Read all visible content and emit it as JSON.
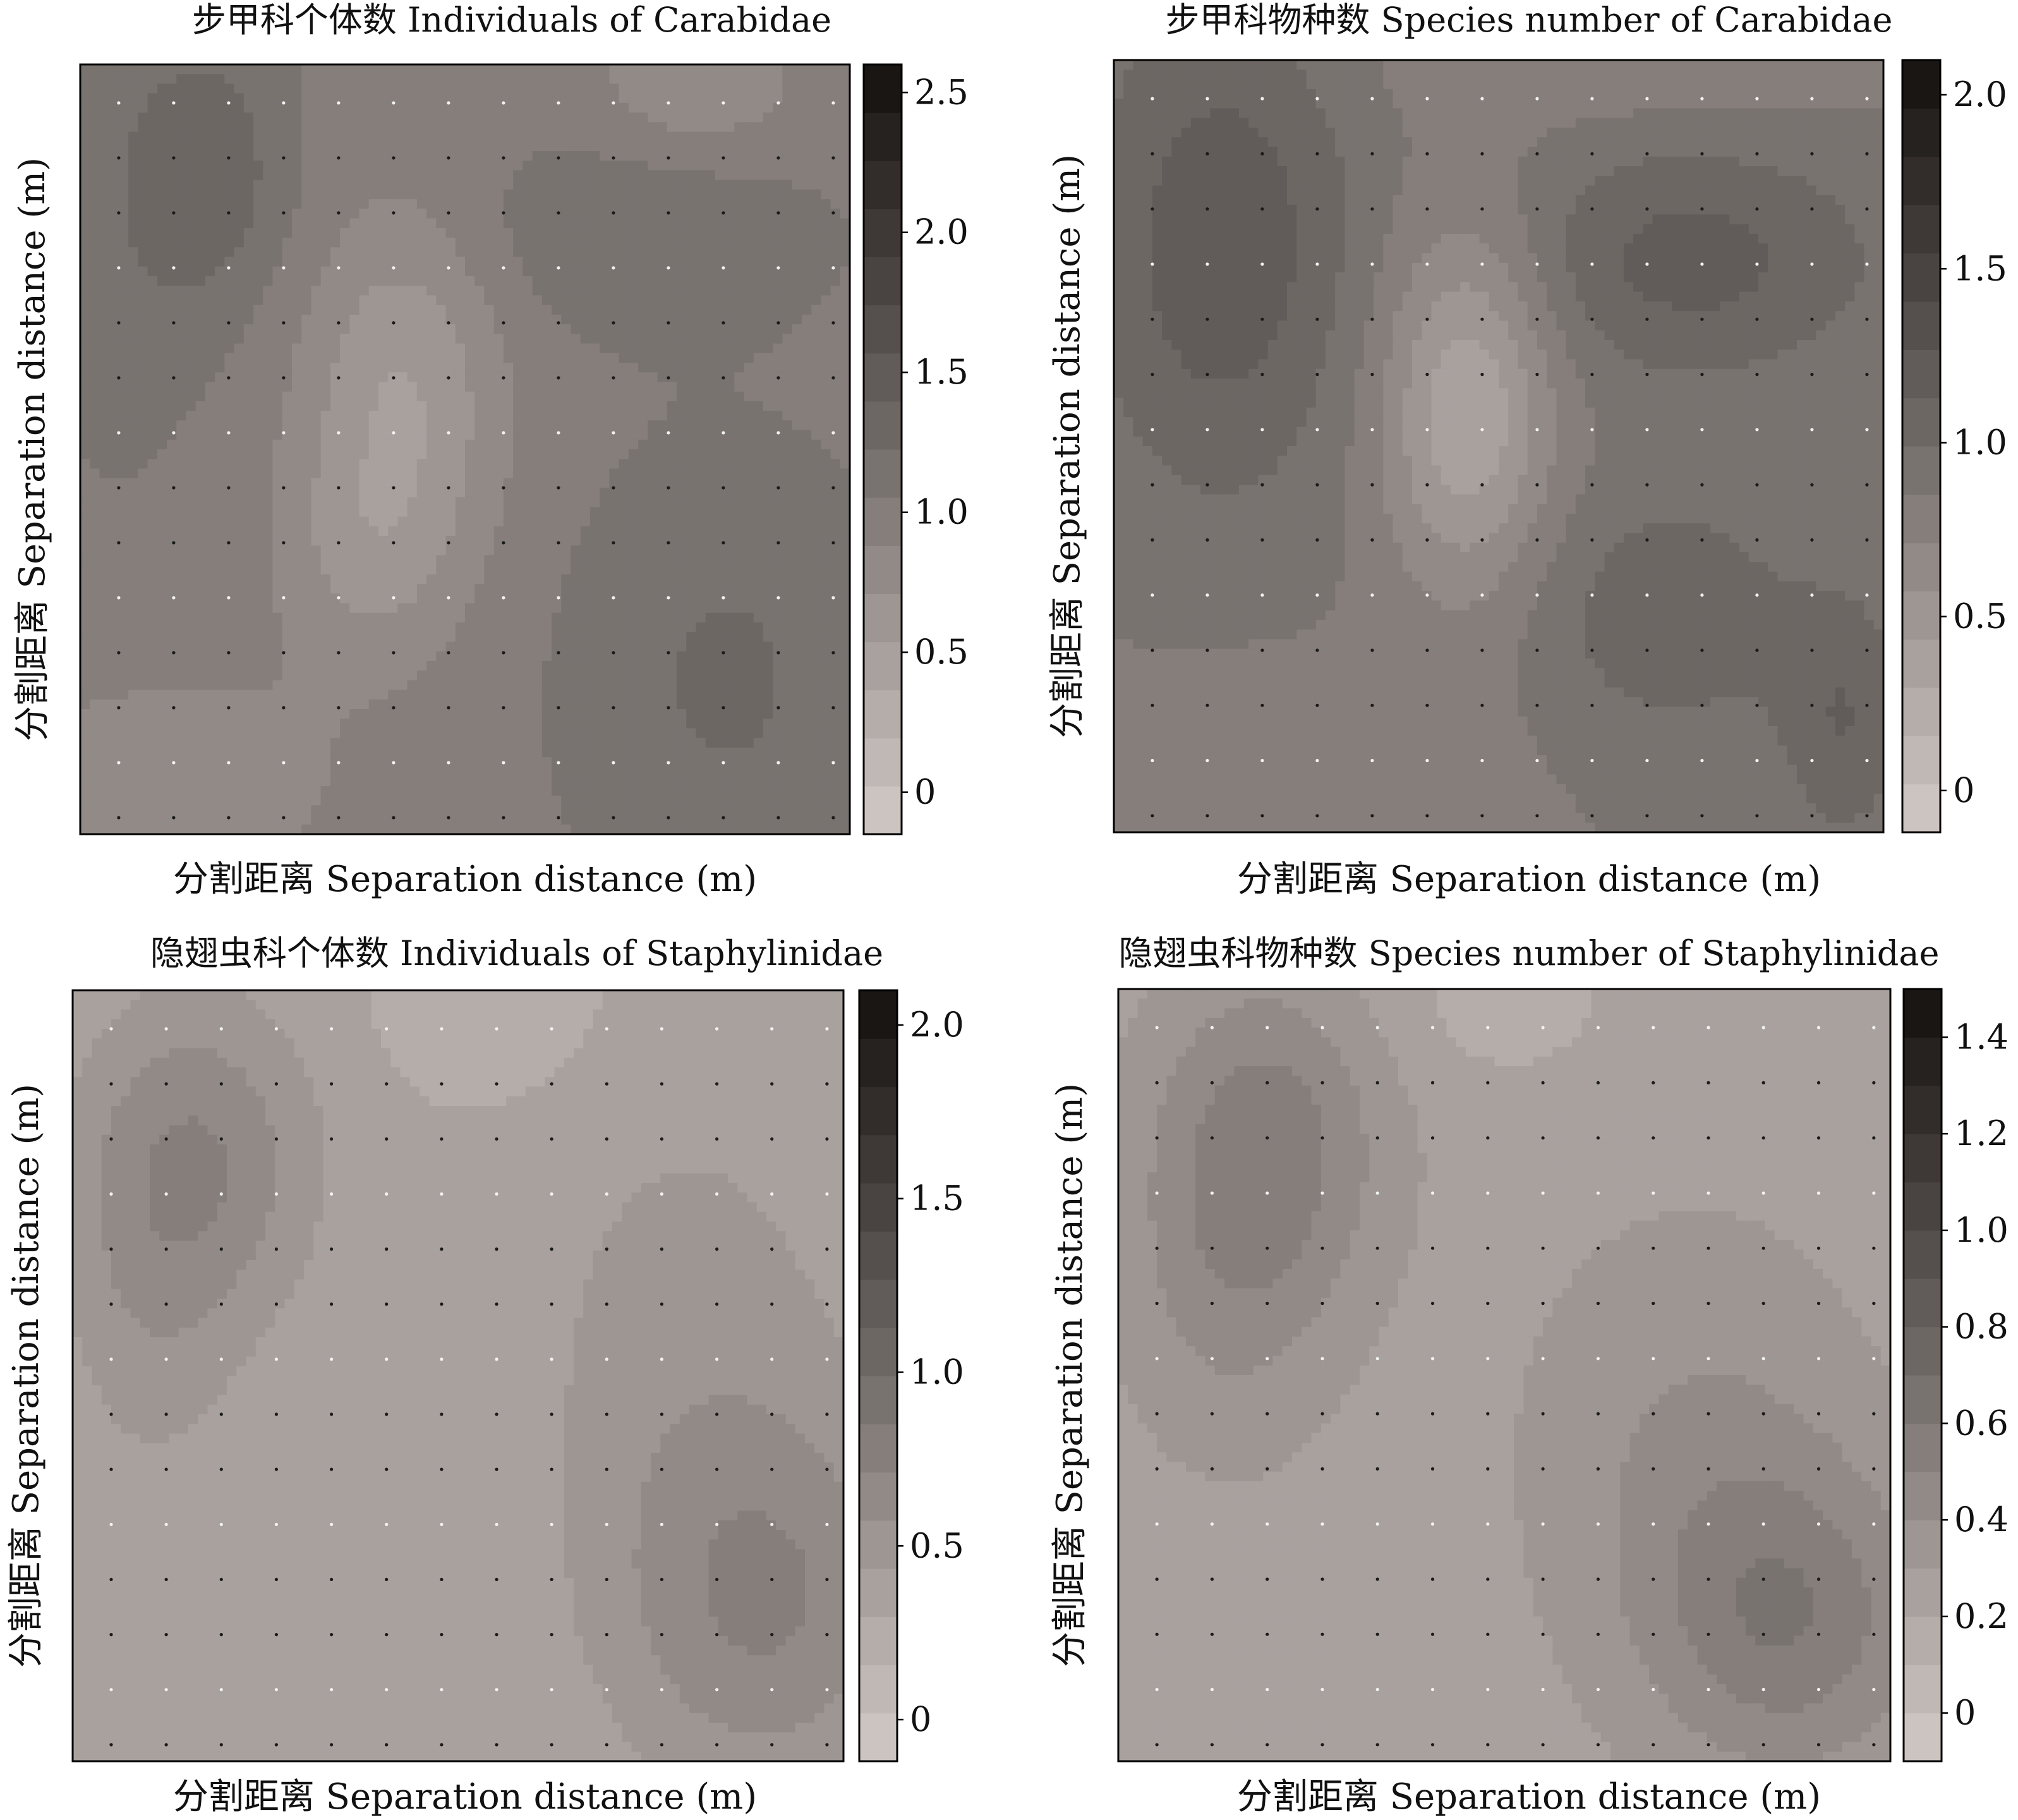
{
  "chart_data": [
    {
      "type": "heatmap",
      "title": "步甲科个体数 Individuals of Carabidae",
      "xlabel": "分割距离 Separation distance (m)",
      "ylabel": "分割距离 Separation distance (m)",
      "colorbar_ticks": [
        "0",
        "0.5",
        "1.0",
        "1.5",
        "2.0",
        "2.5"
      ],
      "colorbar_values": [
        0,
        0.5,
        1.0,
        1.5,
        2.0,
        2.5
      ],
      "colorbar_range": [
        -0.15,
        2.6
      ],
      "grid": false,
      "base_value": 1.0,
      "blobs": [
        {
          "cx": 0.16,
          "cy": 0.14,
          "rx": 0.11,
          "ry": 0.18,
          "amp": 0.35
        },
        {
          "cx": 0.05,
          "cy": 0.3,
          "rx": 0.12,
          "ry": 0.3,
          "amp": 0.1
        },
        {
          "cx": 0.42,
          "cy": 0.42,
          "rx": 0.13,
          "ry": 0.24,
          "amp": -0.45
        },
        {
          "cx": 0.37,
          "cy": 0.64,
          "rx": 0.12,
          "ry": 0.16,
          "amp": -0.25
        },
        {
          "cx": 0.72,
          "cy": 0.22,
          "rx": 0.24,
          "ry": 0.13,
          "amp": 0.2
        },
        {
          "cx": 0.84,
          "cy": 0.8,
          "rx": 0.2,
          "ry": 0.28,
          "amp": 0.25
        },
        {
          "cx": 0.12,
          "cy": 0.93,
          "rx": 0.22,
          "ry": 0.14,
          "amp": -0.25
        },
        {
          "cx": 0.8,
          "cy": 0.03,
          "rx": 0.14,
          "ry": 0.1,
          "amp": -0.25
        }
      ]
    },
    {
      "type": "heatmap",
      "title": "步甲科物种数 Species number of Carabidae",
      "xlabel": "分割距离 Separation distance (m)",
      "ylabel": "分割距离 Separation distance (m)",
      "colorbar_ticks": [
        "0",
        "0.5",
        "1.0",
        "1.5",
        "2.0"
      ],
      "colorbar_values": [
        0,
        0.5,
        1.0,
        1.5,
        2.0
      ],
      "colorbar_range": [
        -0.12,
        2.1
      ],
      "grid": false,
      "base_value": 0.85,
      "blobs": [
        {
          "cx": 0.14,
          "cy": 0.24,
          "rx": 0.17,
          "ry": 0.32,
          "amp": 0.38
        },
        {
          "cx": 0.46,
          "cy": 0.45,
          "rx": 0.11,
          "ry": 0.24,
          "amp": -0.55
        },
        {
          "cx": 0.75,
          "cy": 0.26,
          "rx": 0.24,
          "ry": 0.15,
          "amp": 0.33
        },
        {
          "cx": 0.72,
          "cy": 0.72,
          "rx": 0.2,
          "ry": 0.18,
          "amp": 0.22
        },
        {
          "cx": 0.95,
          "cy": 0.86,
          "rx": 0.08,
          "ry": 0.16,
          "amp": 0.25
        },
        {
          "cx": 0.22,
          "cy": 0.93,
          "rx": 0.3,
          "ry": 0.14,
          "amp": -0.12
        },
        {
          "cx": 0.65,
          "cy": 0.0,
          "rx": 0.3,
          "ry": 0.08,
          "amp": -0.12
        }
      ]
    },
    {
      "type": "heatmap",
      "title": "隐翅虫科个体数 Individuals of Staphylinidae",
      "xlabel": "分割距离 Separation distance (m)",
      "ylabel": "分割距离 Separation distance (m)",
      "colorbar_ticks": [
        "0",
        "0.5",
        "1.0",
        "1.5",
        "2.0"
      ],
      "colorbar_values": [
        0,
        0.5,
        1.0,
        1.5,
        2.0
      ],
      "colorbar_range": [
        -0.12,
        2.1
      ],
      "grid": false,
      "base_value": 0.3,
      "blobs": [
        {
          "cx": 0.16,
          "cy": 0.22,
          "rx": 0.16,
          "ry": 0.22,
          "amp": 0.4
        },
        {
          "cx": 0.1,
          "cy": 0.45,
          "rx": 0.12,
          "ry": 0.25,
          "amp": 0.15
        },
        {
          "cx": 0.9,
          "cy": 0.8,
          "rx": 0.2,
          "ry": 0.25,
          "amp": 0.38
        },
        {
          "cx": 0.8,
          "cy": 0.45,
          "rx": 0.24,
          "ry": 0.4,
          "amp": 0.18
        },
        {
          "cx": 0.55,
          "cy": 0.02,
          "rx": 0.14,
          "ry": 0.12,
          "amp": -0.12
        }
      ]
    },
    {
      "type": "heatmap",
      "title": "隐翅虫科物种数 Species number of Staphylinidae",
      "xlabel": "分割距离 Separation distance (m)",
      "ylabel": "分割距离 Separation distance (m)",
      "colorbar_ticks": [
        "0",
        "0.2",
        "0.4",
        "0.6",
        "0.8",
        "1.0",
        "1.2",
        "1.4"
      ],
      "colorbar_values": [
        0,
        0.2,
        0.4,
        0.6,
        0.8,
        1.0,
        1.2,
        1.4
      ],
      "colorbar_range": [
        -0.1,
        1.5
      ],
      "grid": false,
      "base_value": 0.25,
      "blobs": [
        {
          "cx": 0.19,
          "cy": 0.2,
          "rx": 0.15,
          "ry": 0.22,
          "amp": 0.3
        },
        {
          "cx": 0.14,
          "cy": 0.42,
          "rx": 0.14,
          "ry": 0.22,
          "amp": 0.12
        },
        {
          "cx": 0.87,
          "cy": 0.82,
          "rx": 0.18,
          "ry": 0.2,
          "amp": 0.3
        },
        {
          "cx": 0.75,
          "cy": 0.6,
          "rx": 0.22,
          "ry": 0.3,
          "amp": 0.15
        },
        {
          "cx": 0.5,
          "cy": 0.02,
          "rx": 0.14,
          "ry": 0.1,
          "amp": -0.1
        }
      ]
    }
  ]
}
